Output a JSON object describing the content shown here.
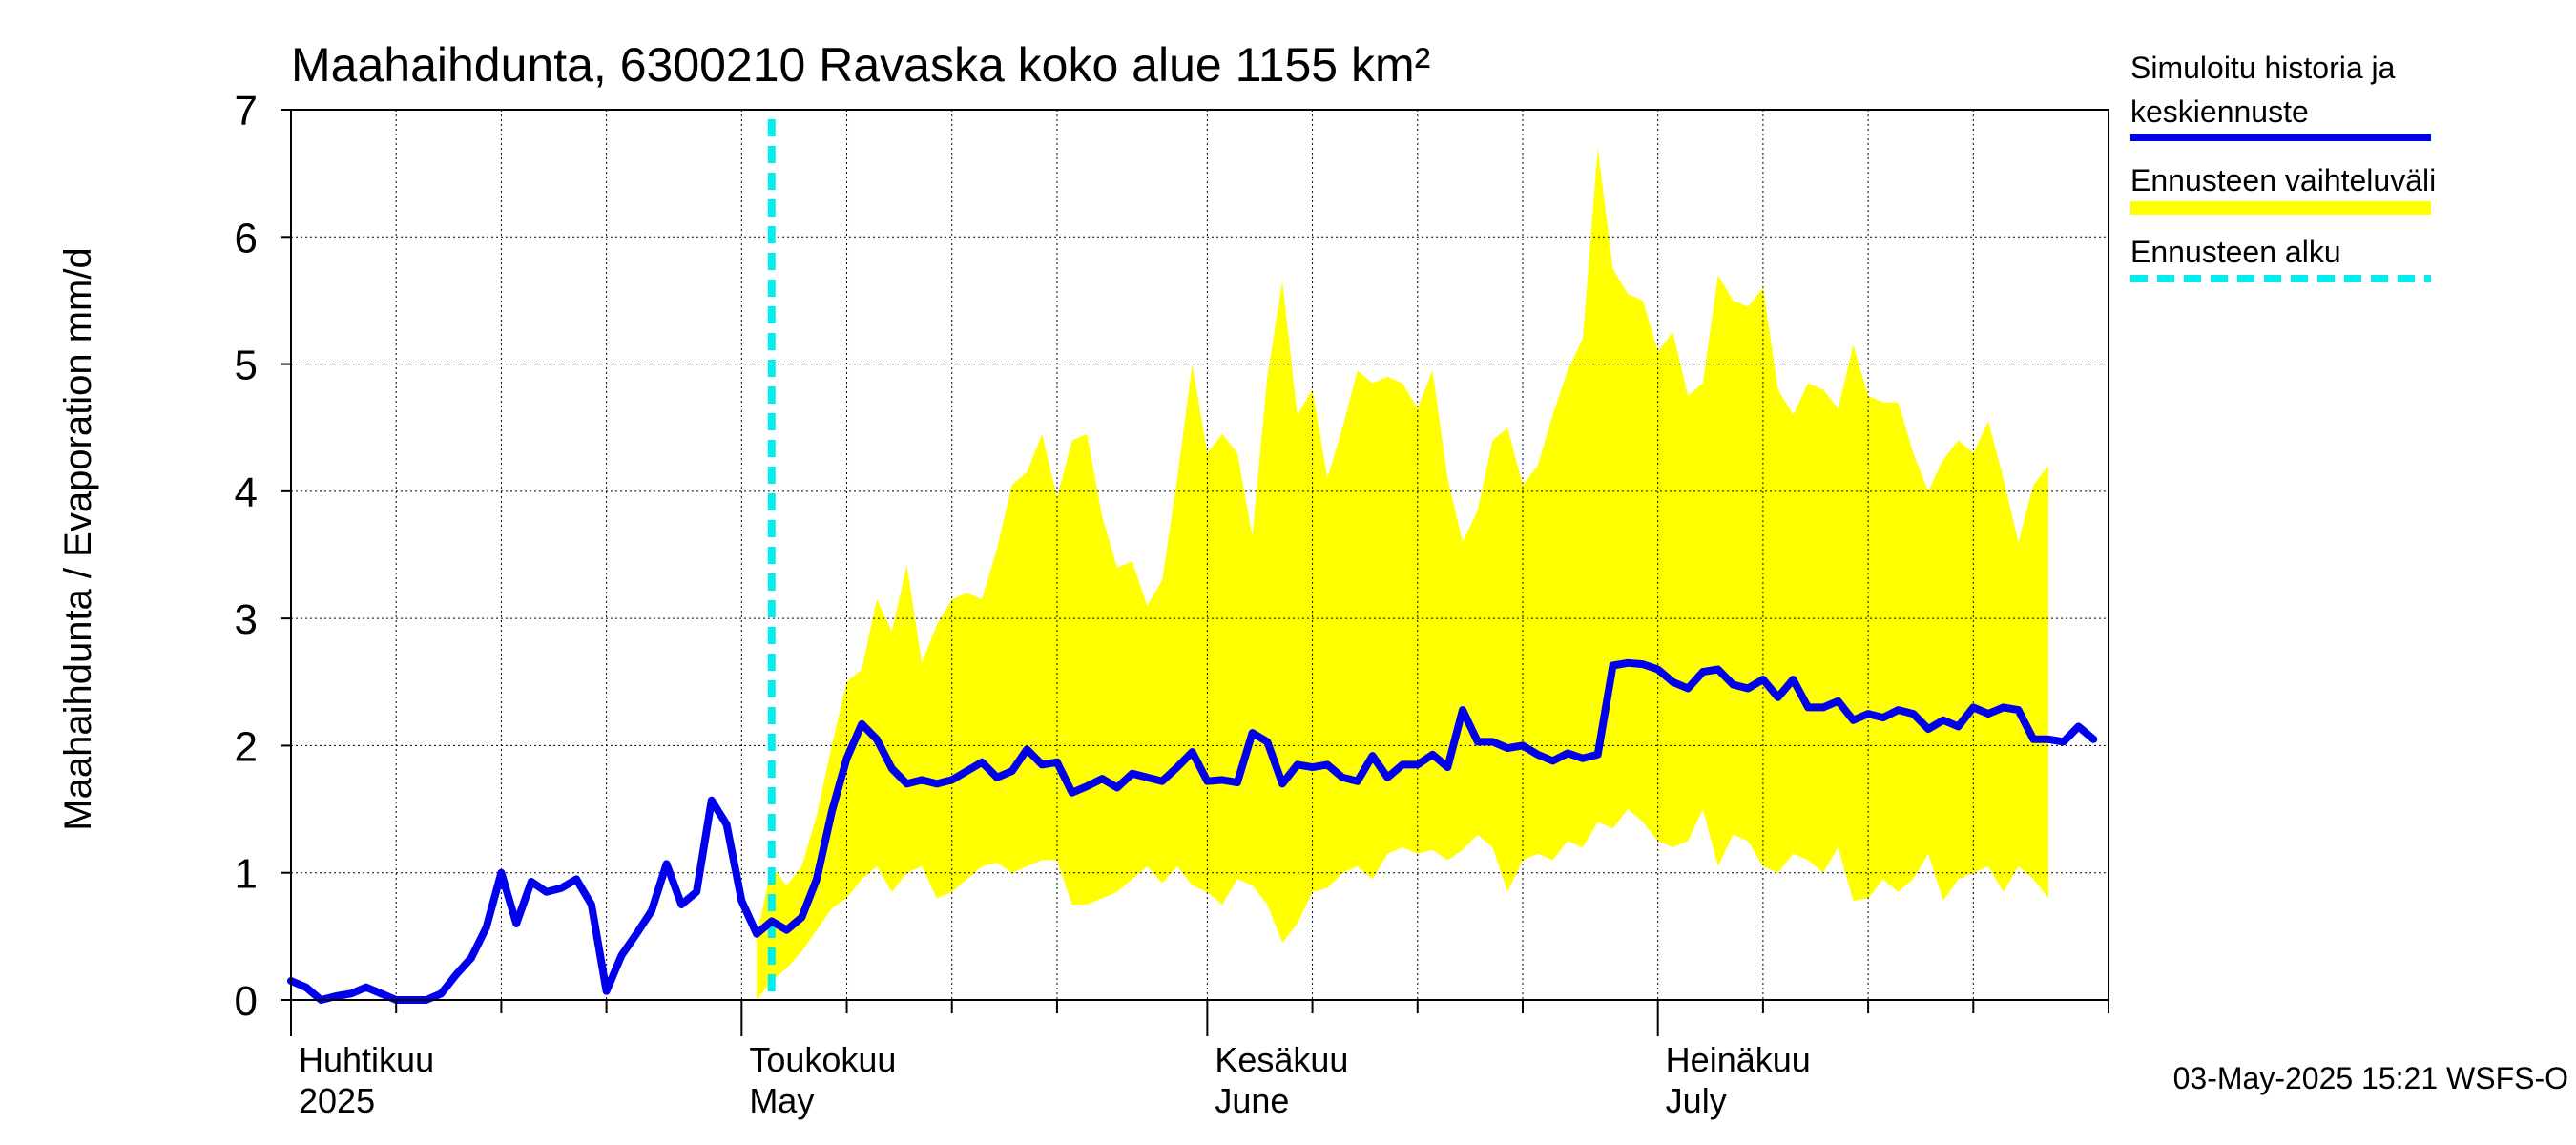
{
  "chart_data": {
    "type": "line",
    "title": "Maahaihdunta, 6300210 Ravaska koko alue 1155 km²",
    "ylabel": "Maahaihdunta / Evaporation   mm/d",
    "ylim": [
      0,
      7
    ],
    "yticks": [
      0,
      1,
      2,
      3,
      4,
      5,
      6,
      7
    ],
    "xlim": [
      "2025-04-01",
      "2025-07-31"
    ],
    "grid": true,
    "x_labels": [
      {
        "date": "2025-04-01",
        "fi": "Huhtikuu",
        "en": "2025"
      },
      {
        "date": "2025-05-01",
        "fi": "Toukokuu",
        "en": "May"
      },
      {
        "date": "2025-06-01",
        "fi": "Kesäkuu",
        "en": "June"
      },
      {
        "date": "2025-07-01",
        "fi": "Heinäkuu",
        "en": "July"
      }
    ],
    "forecast_start": "2025-05-03",
    "legend": {
      "position": "right",
      "entries": [
        {
          "label_line1": "Simuloitu historia ja",
          "label_line2": "keskiennuste",
          "color": "#0000ee",
          "style": "solid"
        },
        {
          "label_line1": "Ennusteen vaihteluväli",
          "label_line2": "",
          "color": "#ffff00",
          "style": "band"
        },
        {
          "label_line1": "Ennusteen alku",
          "label_line2": "",
          "color": "#00eeee",
          "style": "dashed"
        }
      ]
    },
    "footer": "03-May-2025 15:21 WSFS-O",
    "series": [
      {
        "name": "Simuloitu historia ja keskiennuste",
        "color": "#0000ee",
        "points": [
          [
            "2025-04-01",
            0.15
          ],
          [
            "2025-04-02",
            0.1
          ],
          [
            "2025-04-03",
            0.0
          ],
          [
            "2025-04-04",
            0.03
          ],
          [
            "2025-04-05",
            0.05
          ],
          [
            "2025-04-06",
            0.1
          ],
          [
            "2025-04-07",
            0.05
          ],
          [
            "2025-04-08",
            0.0
          ],
          [
            "2025-04-09",
            0.0
          ],
          [
            "2025-04-10",
            0.0
          ],
          [
            "2025-04-11",
            0.05
          ],
          [
            "2025-04-12",
            0.2
          ],
          [
            "2025-04-13",
            0.33
          ],
          [
            "2025-04-14",
            0.57
          ],
          [
            "2025-04-15",
            1.0
          ],
          [
            "2025-04-16",
            0.6
          ],
          [
            "2025-04-17",
            0.93
          ],
          [
            "2025-04-18",
            0.85
          ],
          [
            "2025-04-19",
            0.88
          ],
          [
            "2025-04-20",
            0.95
          ],
          [
            "2025-04-21",
            0.75
          ],
          [
            "2025-04-22",
            0.07
          ],
          [
            "2025-04-23",
            0.35
          ],
          [
            "2025-04-24",
            0.52
          ],
          [
            "2025-04-25",
            0.7
          ],
          [
            "2025-04-26",
            1.07
          ],
          [
            "2025-04-27",
            0.75
          ],
          [
            "2025-04-28",
            0.85
          ],
          [
            "2025-04-29",
            1.57
          ],
          [
            "2025-04-30",
            1.38
          ],
          [
            "2025-05-01",
            0.78
          ],
          [
            "2025-05-02",
            0.52
          ],
          [
            "2025-05-03",
            0.62
          ],
          [
            "2025-05-04",
            0.55
          ],
          [
            "2025-05-05",
            0.65
          ],
          [
            "2025-05-06",
            0.95
          ],
          [
            "2025-05-07",
            1.48
          ],
          [
            "2025-05-08",
            1.9
          ],
          [
            "2025-05-09",
            2.17
          ],
          [
            "2025-05-10",
            2.05
          ],
          [
            "2025-05-11",
            1.82
          ],
          [
            "2025-05-12",
            1.7
          ],
          [
            "2025-05-13",
            1.73
          ],
          [
            "2025-05-14",
            1.7
          ],
          [
            "2025-05-15",
            1.73
          ],
          [
            "2025-05-16",
            1.8
          ],
          [
            "2025-05-17",
            1.87
          ],
          [
            "2025-05-18",
            1.75
          ],
          [
            "2025-05-19",
            1.8
          ],
          [
            "2025-05-20",
            1.97
          ],
          [
            "2025-05-21",
            1.85
          ],
          [
            "2025-05-22",
            1.87
          ],
          [
            "2025-05-23",
            1.63
          ],
          [
            "2025-05-24",
            1.68
          ],
          [
            "2025-05-25",
            1.74
          ],
          [
            "2025-05-26",
            1.67
          ],
          [
            "2025-05-27",
            1.78
          ],
          [
            "2025-05-28",
            1.75
          ],
          [
            "2025-05-29",
            1.72
          ],
          [
            "2025-05-30",
            1.83
          ],
          [
            "2025-05-31",
            1.95
          ],
          [
            "2025-06-01",
            1.72
          ],
          [
            "2025-06-02",
            1.73
          ],
          [
            "2025-06-03",
            1.71
          ],
          [
            "2025-06-04",
            2.1
          ],
          [
            "2025-06-05",
            2.03
          ],
          [
            "2025-06-06",
            1.7
          ],
          [
            "2025-06-07",
            1.85
          ],
          [
            "2025-06-08",
            1.83
          ],
          [
            "2025-06-09",
            1.85
          ],
          [
            "2025-06-10",
            1.75
          ],
          [
            "2025-06-11",
            1.72
          ],
          [
            "2025-06-12",
            1.92
          ],
          [
            "2025-06-13",
            1.75
          ],
          [
            "2025-06-14",
            1.85
          ],
          [
            "2025-06-15",
            1.85
          ],
          [
            "2025-06-16",
            1.93
          ],
          [
            "2025-06-17",
            1.83
          ],
          [
            "2025-06-18",
            2.28
          ],
          [
            "2025-06-19",
            2.03
          ],
          [
            "2025-06-20",
            2.03
          ],
          [
            "2025-06-21",
            1.98
          ],
          [
            "2025-06-22",
            2.0
          ],
          [
            "2025-06-23",
            1.93
          ],
          [
            "2025-06-24",
            1.88
          ],
          [
            "2025-06-25",
            1.94
          ],
          [
            "2025-06-26",
            1.9
          ],
          [
            "2025-06-27",
            1.93
          ],
          [
            "2025-06-28",
            2.63
          ],
          [
            "2025-06-29",
            2.65
          ],
          [
            "2025-06-30",
            2.64
          ],
          [
            "2025-07-01",
            2.6
          ],
          [
            "2025-07-02",
            2.5
          ],
          [
            "2025-07-03",
            2.45
          ],
          [
            "2025-07-04",
            2.58
          ],
          [
            "2025-07-05",
            2.6
          ],
          [
            "2025-07-06",
            2.48
          ],
          [
            "2025-07-07",
            2.45
          ],
          [
            "2025-07-08",
            2.52
          ],
          [
            "2025-07-09",
            2.38
          ],
          [
            "2025-07-10",
            2.52
          ],
          [
            "2025-07-11",
            2.3
          ],
          [
            "2025-07-12",
            2.3
          ],
          [
            "2025-07-13",
            2.35
          ],
          [
            "2025-07-14",
            2.2
          ],
          [
            "2025-07-15",
            2.25
          ],
          [
            "2025-07-16",
            2.22
          ],
          [
            "2025-07-17",
            2.28
          ],
          [
            "2025-07-18",
            2.25
          ],
          [
            "2025-07-19",
            2.13
          ],
          [
            "2025-07-20",
            2.2
          ],
          [
            "2025-07-21",
            2.15
          ],
          [
            "2025-07-22",
            2.3
          ],
          [
            "2025-07-23",
            2.25
          ],
          [
            "2025-07-24",
            2.3
          ],
          [
            "2025-07-25",
            2.28
          ],
          [
            "2025-07-26",
            2.05
          ],
          [
            "2025-07-27",
            2.05
          ],
          [
            "2025-07-28",
            2.03
          ],
          [
            "2025-07-29",
            2.15
          ],
          [
            "2025-07-30",
            2.05
          ]
        ]
      }
    ],
    "band": {
      "name": "Ennusteen vaihteluväli",
      "color": "#ffff00",
      "points": [
        [
          "2025-05-02",
          0.0,
          0.5
        ],
        [
          "2025-05-03",
          0.15,
          1.05
        ],
        [
          "2025-05-04",
          0.25,
          0.9
        ],
        [
          "2025-05-05",
          0.38,
          1.05
        ],
        [
          "2025-05-06",
          0.55,
          1.45
        ],
        [
          "2025-05-07",
          0.72,
          2.0
        ],
        [
          "2025-05-08",
          0.8,
          2.5
        ],
        [
          "2025-05-09",
          0.95,
          2.6
        ],
        [
          "2025-05-10",
          1.05,
          3.15
        ],
        [
          "2025-05-11",
          0.85,
          2.9
        ],
        [
          "2025-05-12",
          1.0,
          3.42
        ],
        [
          "2025-05-13",
          1.05,
          2.65
        ],
        [
          "2025-05-14",
          0.8,
          2.95
        ],
        [
          "2025-05-15",
          0.85,
          3.15
        ],
        [
          "2025-05-16",
          0.95,
          3.2
        ],
        [
          "2025-05-17",
          1.05,
          3.15
        ],
        [
          "2025-05-18",
          1.08,
          3.55
        ],
        [
          "2025-05-19",
          1.0,
          4.05
        ],
        [
          "2025-05-20",
          1.05,
          4.15
        ],
        [
          "2025-05-21",
          1.1,
          4.45
        ],
        [
          "2025-05-22",
          1.1,
          3.95
        ],
        [
          "2025-05-23",
          0.75,
          4.4
        ],
        [
          "2025-05-24",
          0.75,
          4.45
        ],
        [
          "2025-05-25",
          0.8,
          3.8
        ],
        [
          "2025-05-26",
          0.85,
          3.4
        ],
        [
          "2025-05-27",
          0.95,
          3.45
        ],
        [
          "2025-05-28",
          1.05,
          3.1
        ],
        [
          "2025-05-29",
          0.92,
          3.3
        ],
        [
          "2025-05-30",
          1.05,
          4.1
        ],
        [
          "2025-05-31",
          0.9,
          5.0
        ],
        [
          "2025-06-01",
          0.85,
          4.3
        ],
        [
          "2025-06-02",
          0.75,
          4.45
        ],
        [
          "2025-06-03",
          0.95,
          4.3
        ],
        [
          "2025-06-04",
          0.9,
          3.65
        ],
        [
          "2025-06-05",
          0.75,
          4.9
        ],
        [
          "2025-06-06",
          0.45,
          5.65
        ],
        [
          "2025-06-07",
          0.6,
          4.6
        ],
        [
          "2025-06-08",
          0.85,
          4.8
        ],
        [
          "2025-06-09",
          0.88,
          4.1
        ],
        [
          "2025-06-10",
          1.0,
          4.5
        ],
        [
          "2025-06-11",
          1.05,
          4.95
        ],
        [
          "2025-06-12",
          0.95,
          4.85
        ],
        [
          "2025-06-13",
          1.15,
          4.9
        ],
        [
          "2025-06-14",
          1.2,
          4.85
        ],
        [
          "2025-06-15",
          1.15,
          4.65
        ],
        [
          "2025-06-16",
          1.18,
          4.95
        ],
        [
          "2025-06-17",
          1.1,
          4.1
        ],
        [
          "2025-06-18",
          1.18,
          3.6
        ],
        [
          "2025-06-19",
          1.3,
          3.85
        ],
        [
          "2025-06-20",
          1.2,
          4.4
        ],
        [
          "2025-06-21",
          0.85,
          4.5
        ],
        [
          "2025-06-22",
          1.1,
          4.05
        ],
        [
          "2025-06-23",
          1.15,
          4.2
        ],
        [
          "2025-06-24",
          1.1,
          4.6
        ],
        [
          "2025-06-25",
          1.25,
          4.95
        ],
        [
          "2025-06-26",
          1.2,
          5.2
        ],
        [
          "2025-06-27",
          1.4,
          6.7
        ],
        [
          "2025-06-28",
          1.35,
          5.75
        ],
        [
          "2025-06-29",
          1.5,
          5.55
        ],
        [
          "2025-06-30",
          1.4,
          5.5
        ],
        [
          "2025-07-01",
          1.25,
          5.1
        ],
        [
          "2025-07-02",
          1.2,
          5.25
        ],
        [
          "2025-07-03",
          1.25,
          4.75
        ],
        [
          "2025-07-04",
          1.5,
          4.85
        ],
        [
          "2025-07-05",
          1.05,
          5.7
        ],
        [
          "2025-07-06",
          1.3,
          5.5
        ],
        [
          "2025-07-07",
          1.25,
          5.45
        ],
        [
          "2025-07-08",
          1.05,
          5.6
        ],
        [
          "2025-07-09",
          1.0,
          4.8
        ],
        [
          "2025-07-10",
          1.15,
          4.6
        ],
        [
          "2025-07-11",
          1.1,
          4.85
        ],
        [
          "2025-07-12",
          1.0,
          4.8
        ],
        [
          "2025-07-13",
          1.2,
          4.65
        ],
        [
          "2025-07-14",
          0.78,
          5.15
        ],
        [
          "2025-07-15",
          0.8,
          4.75
        ],
        [
          "2025-07-16",
          0.95,
          4.7
        ],
        [
          "2025-07-17",
          0.85,
          4.7
        ],
        [
          "2025-07-18",
          0.95,
          4.3
        ],
        [
          "2025-07-19",
          1.15,
          4.0
        ],
        [
          "2025-07-20",
          0.78,
          4.25
        ],
        [
          "2025-07-21",
          0.95,
          4.4
        ],
        [
          "2025-07-22",
          1.0,
          4.3
        ],
        [
          "2025-07-23",
          1.05,
          4.55
        ],
        [
          "2025-07-24",
          0.85,
          4.1
        ],
        [
          "2025-07-25",
          1.05,
          3.6
        ],
        [
          "2025-07-26",
          0.95,
          4.05
        ],
        [
          "2025-07-27",
          0.8,
          4.2
        ]
      ]
    }
  }
}
